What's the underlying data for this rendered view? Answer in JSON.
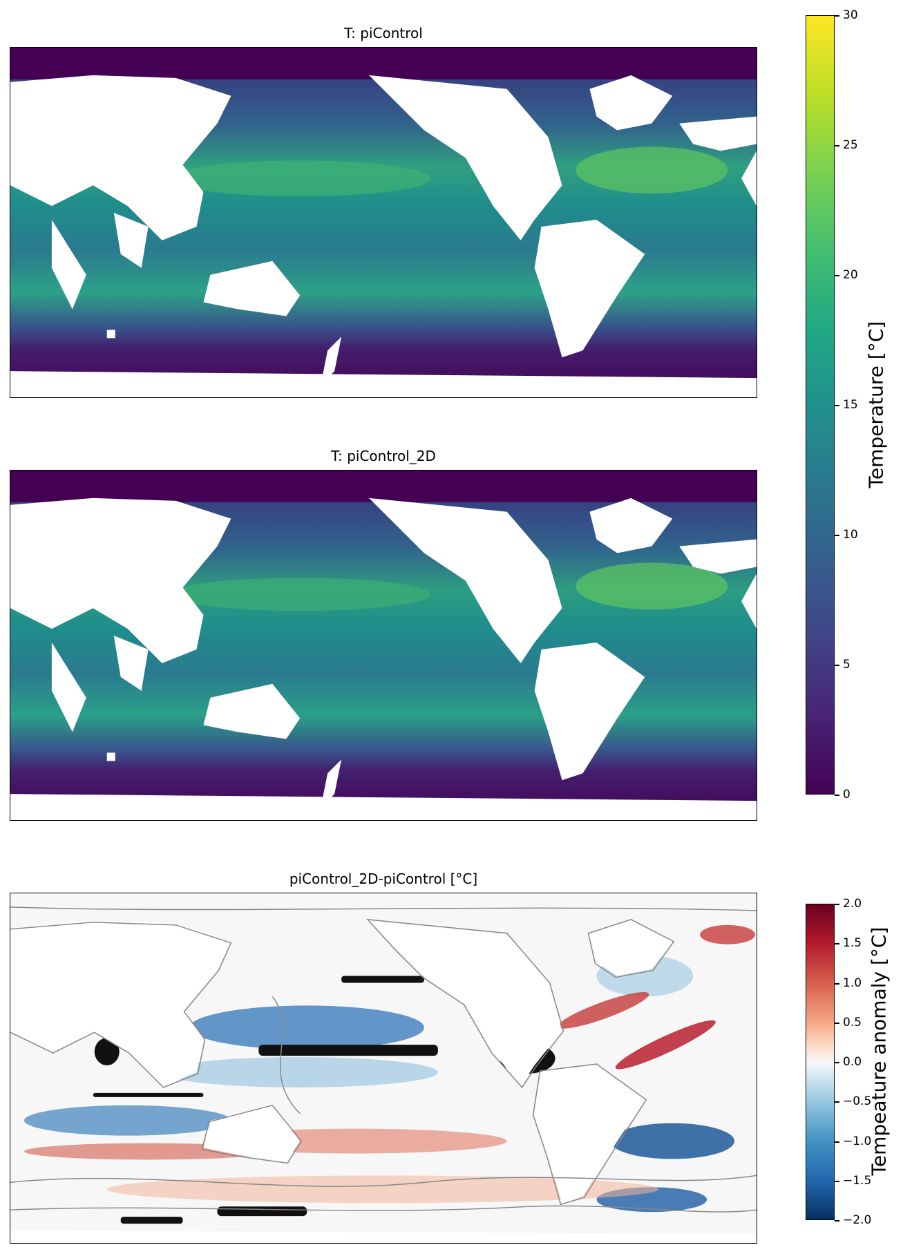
{
  "panels": [
    {
      "title": "T: piControl"
    },
    {
      "title": "T: piControl_2D"
    },
    {
      "title": "piControl_2D-piControl [°C]"
    }
  ],
  "colorbar_temperature": {
    "label": "Temperature [°C]",
    "colormap": "viridis",
    "range": [
      0,
      30
    ],
    "ticks": [
      "0",
      "5",
      "10",
      "15",
      "20",
      "25",
      "30"
    ]
  },
  "colorbar_anomaly": {
    "label": "Tempeature anomaly [°C]",
    "colormap": "RdBu_r",
    "range": [
      -2.0,
      2.0
    ],
    "ticks": [
      "−2.0",
      "−1.5",
      "−1.0",
      "−0.5",
      "0.0",
      "0.5",
      "1.0",
      "1.5",
      "2.0"
    ]
  },
  "colors": {
    "land": "#ffffff",
    "contour": "#888888",
    "stipple": "#000000"
  }
}
